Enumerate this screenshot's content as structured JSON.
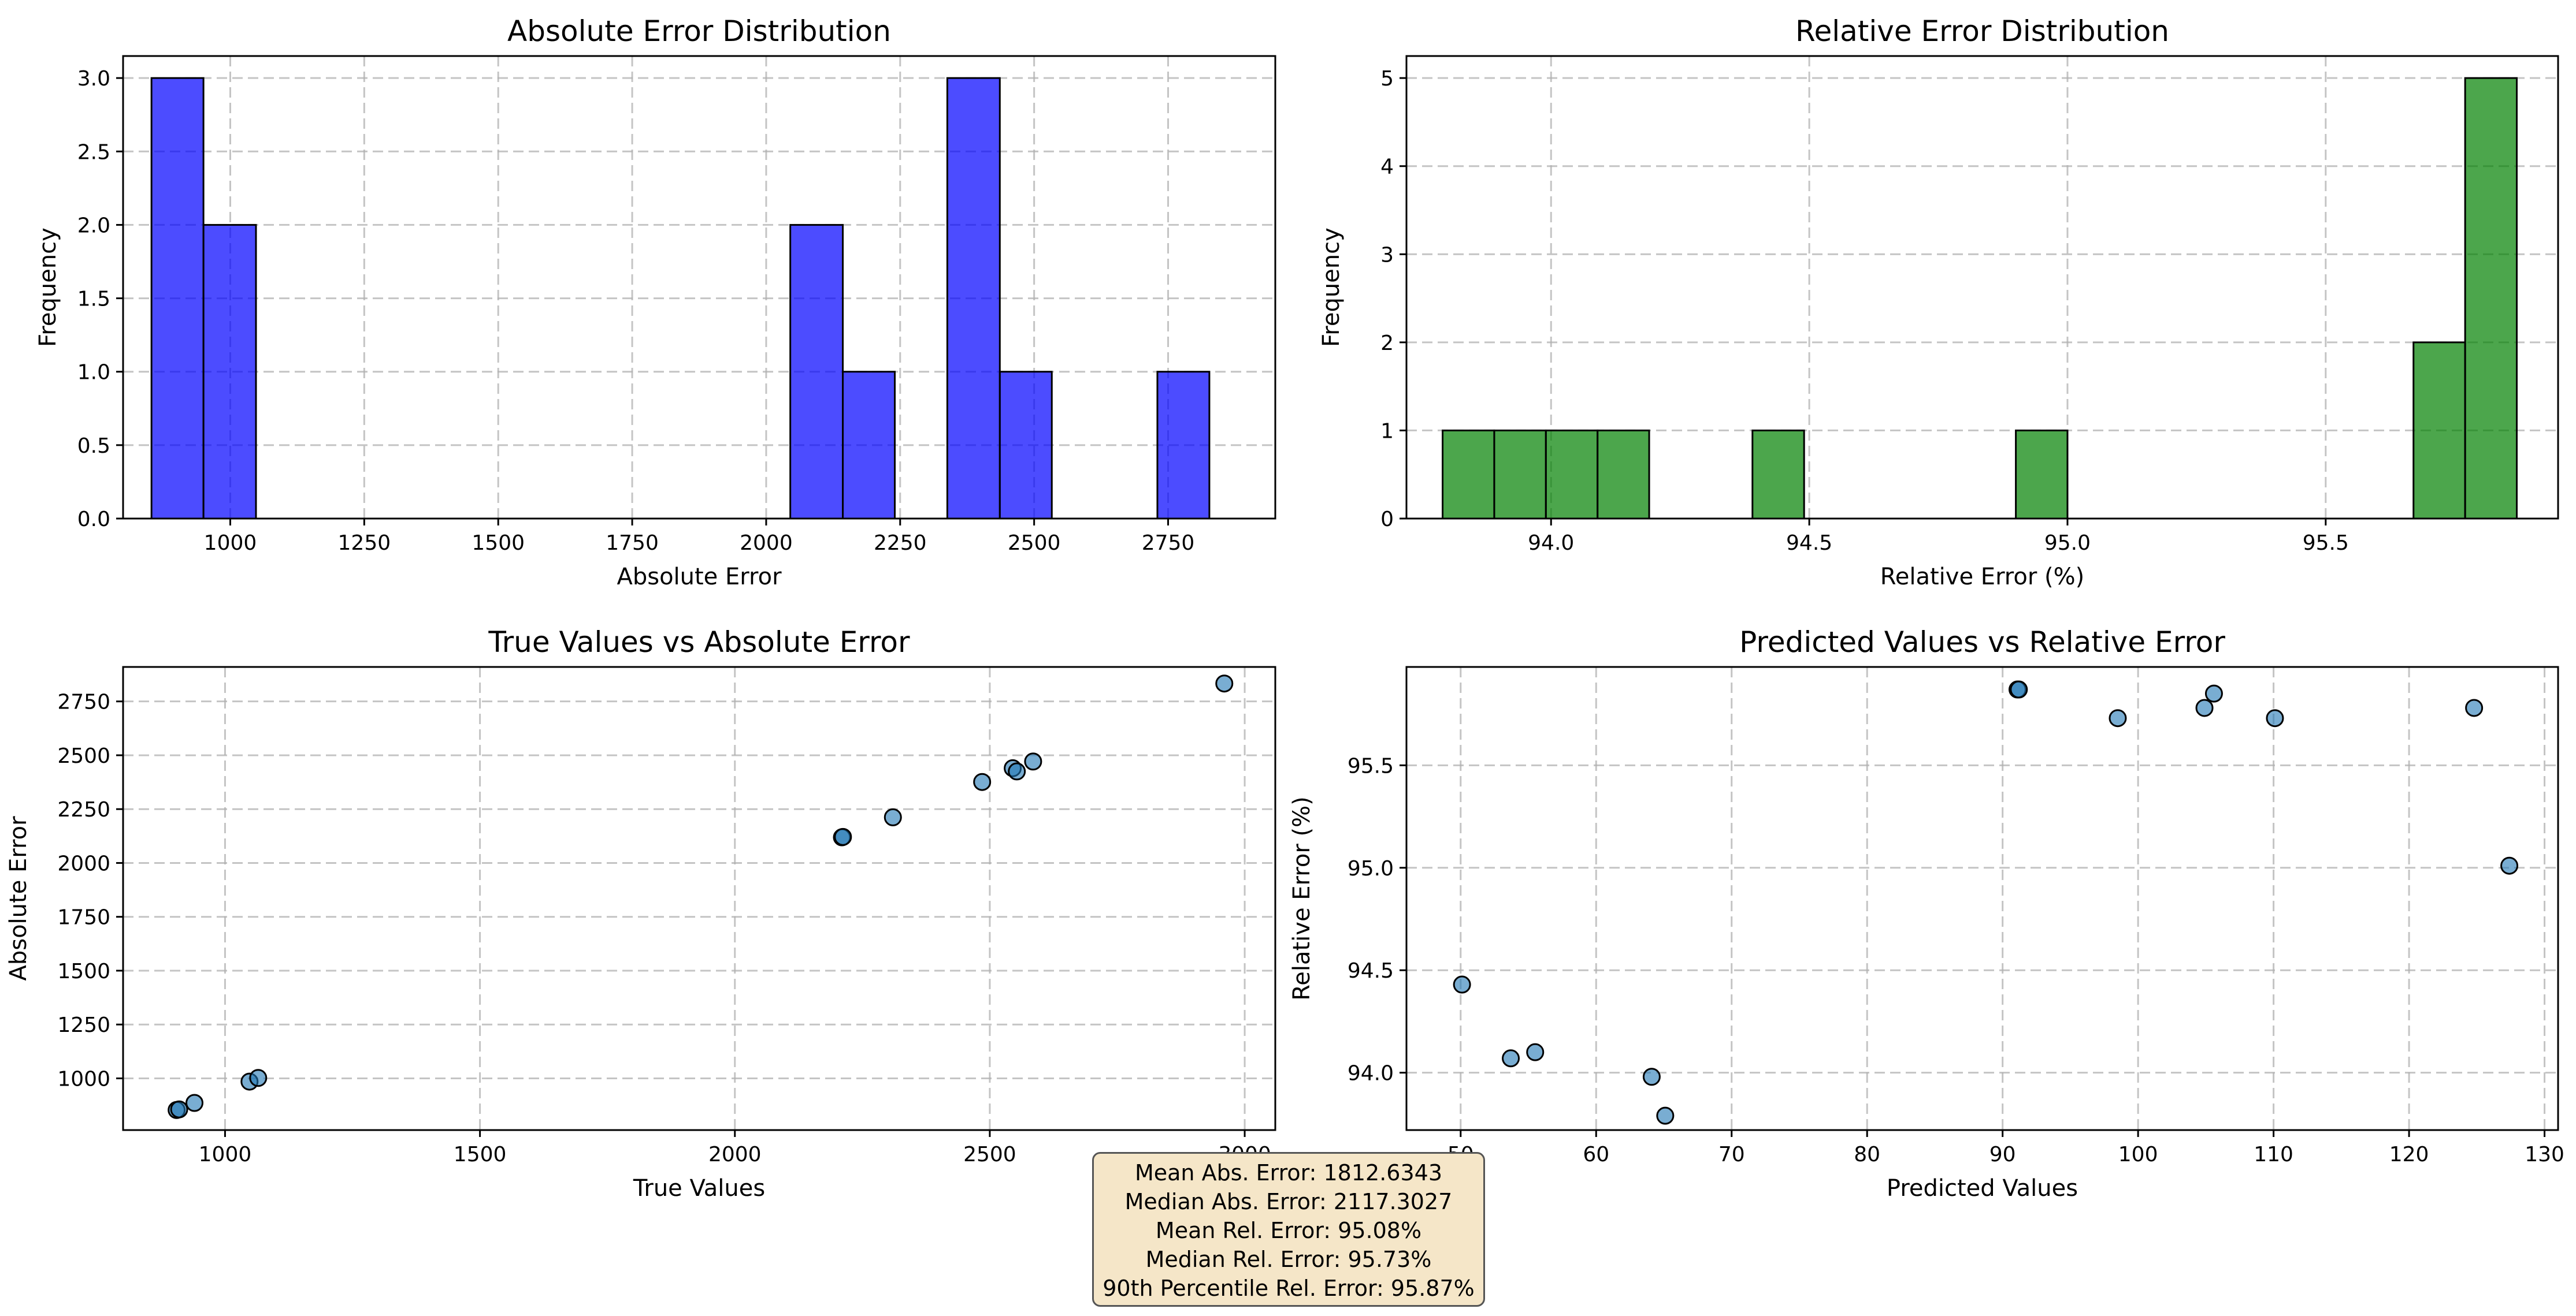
{
  "colors": {
    "hist_abs": "#0000ff",
    "hist_rel": "#008000",
    "scatter": "#1f77b4"
  },
  "stats": {
    "lines": [
      "Mean Abs. Error: 1812.6343",
      "Median Abs. Error: 2117.3027",
      "Mean Rel. Error: 95.08%",
      "Median Rel. Error: 95.73%",
      "90th Percentile Rel. Error: 95.87%"
    ]
  },
  "chart_data": [
    {
      "type": "bar",
      "title": "Absolute Error Distribution",
      "xlabel": "Absolute Error",
      "ylabel": "Frequency",
      "xlim": [
        800,
        2950
      ],
      "ylim": [
        0,
        3.15
      ],
      "xticks": [
        1000,
        1250,
        1500,
        1750,
        2000,
        2250,
        2500,
        2750
      ],
      "yticks": [
        0.0,
        0.5,
        1.0,
        1.5,
        2.0,
        2.5,
        3.0
      ],
      "ytick_labels": [
        "0.0",
        "0.5",
        "1.0",
        "1.5",
        "2.0",
        "2.5",
        "3.0"
      ],
      "grid": true,
      "bins": [
        {
          "start": 853,
          "end": 950,
          "count": 3
        },
        {
          "start": 950,
          "end": 1048,
          "count": 2
        },
        {
          "start": 2045,
          "end": 2143,
          "count": 2
        },
        {
          "start": 2143,
          "end": 2240,
          "count": 1
        },
        {
          "start": 2338,
          "end": 2436,
          "count": 3
        },
        {
          "start": 2436,
          "end": 2533,
          "count": 1
        },
        {
          "start": 2730,
          "end": 2827,
          "count": 1
        }
      ]
    },
    {
      "type": "bar",
      "title": "Relative Error Distribution",
      "xlabel": "Relative Error (%)",
      "ylabel": "Frequency",
      "xlim": [
        93.72,
        95.95
      ],
      "ylim": [
        0,
        5.25
      ],
      "xticks": [
        94.0,
        94.5,
        95.0,
        95.5
      ],
      "xtick_labels": [
        "94.0",
        "94.5",
        "95.0",
        "95.5"
      ],
      "yticks": [
        0,
        1,
        2,
        3,
        4,
        5
      ],
      "grid": true,
      "bins": [
        {
          "start": 93.79,
          "end": 93.89,
          "count": 1
        },
        {
          "start": 93.89,
          "end": 93.99,
          "count": 1
        },
        {
          "start": 93.99,
          "end": 94.09,
          "count": 1
        },
        {
          "start": 94.09,
          "end": 94.19,
          "count": 1
        },
        {
          "start": 94.39,
          "end": 94.49,
          "count": 1
        },
        {
          "start": 94.9,
          "end": 95.0,
          "count": 1
        },
        {
          "start": 95.67,
          "end": 95.77,
          "count": 2
        },
        {
          "start": 95.77,
          "end": 95.87,
          "count": 5
        }
      ]
    },
    {
      "type": "scatter",
      "title": "True Values vs Absolute Error",
      "xlabel": "True Values",
      "ylabel": "Absolute Error",
      "xlim": [
        800,
        3060
      ],
      "ylim": [
        760,
        2910
      ],
      "xticks": [
        1000,
        1500,
        2000,
        2500,
        3000
      ],
      "yticks": [
        1000,
        1250,
        1500,
        1750,
        2000,
        2250,
        2500,
        2750
      ],
      "grid": true,
      "points": [
        {
          "x": 905,
          "y": 853
        },
        {
          "x": 910,
          "y": 856
        },
        {
          "x": 940,
          "y": 886
        },
        {
          "x": 1048,
          "y": 985
        },
        {
          "x": 1065,
          "y": 1002
        },
        {
          "x": 2210,
          "y": 2119
        },
        {
          "x": 2212,
          "y": 2121
        },
        {
          "x": 2310,
          "y": 2212
        },
        {
          "x": 2485,
          "y": 2376
        },
        {
          "x": 2545,
          "y": 2440
        },
        {
          "x": 2553,
          "y": 2425
        },
        {
          "x": 2585,
          "y": 2471
        },
        {
          "x": 2960,
          "y": 2833
        }
      ]
    },
    {
      "type": "scatter",
      "title": "Predicted Values vs Relative Error",
      "xlabel": "Predicted Values",
      "ylabel": "Relative Error (%)",
      "xlim": [
        46,
        131
      ],
      "ylim": [
        93.72,
        95.98
      ],
      "xticks": [
        50,
        60,
        70,
        80,
        90,
        100,
        110,
        120,
        130
      ],
      "yticks": [
        94.0,
        94.5,
        95.0,
        95.5
      ],
      "ytick_labels": [
        "94.0",
        "94.5",
        "95.0",
        "95.5"
      ],
      "grid": true,
      "points": [
        {
          "x": 50.1,
          "y": 94.43
        },
        {
          "x": 53.7,
          "y": 94.07
        },
        {
          "x": 55.5,
          "y": 94.1
        },
        {
          "x": 64.1,
          "y": 93.98
        },
        {
          "x": 65.1,
          "y": 93.79
        },
        {
          "x": 91.1,
          "y": 95.87
        },
        {
          "x": 91.2,
          "y": 95.87
        },
        {
          "x": 98.5,
          "y": 95.73
        },
        {
          "x": 104.9,
          "y": 95.78
        },
        {
          "x": 105.6,
          "y": 95.85
        },
        {
          "x": 110.1,
          "y": 95.73
        },
        {
          "x": 124.8,
          "y": 95.78
        },
        {
          "x": 127.4,
          "y": 95.01
        }
      ]
    }
  ]
}
